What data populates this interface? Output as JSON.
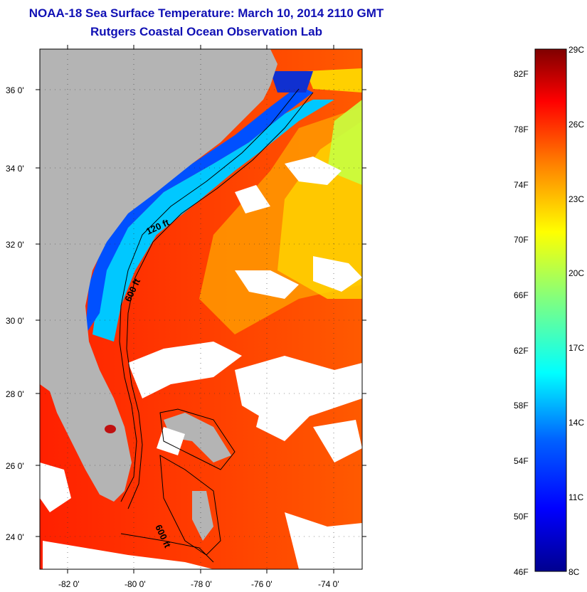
{
  "title": {
    "line1": "NOAA-18 Sea Surface Temperature:  March 10, 2014 2110 GMT",
    "line2": "Rutgers Coastal Ocean Observation Lab"
  },
  "map": {
    "lat_labels": [
      "36 0'",
      "34 0'",
      "32 0'",
      "30 0'",
      "28 0'",
      "26 0'",
      "24 0'"
    ],
    "lon_labels": [
      "-82 0'",
      "-80 0'",
      "-78 0'",
      "-76 0'",
      "-74 0'"
    ],
    "contour_labels": [
      "120 ft",
      "600 ft",
      "600 ft"
    ],
    "land_color": "#b4b4b4",
    "cloud_color": "#ffffff"
  },
  "colorbar": {
    "fahrenheit_labels": [
      "82F",
      "78F",
      "74F",
      "70F",
      "66F",
      "62F",
      "58F",
      "54F",
      "50F",
      "46F"
    ],
    "celsius_labels": [
      "29C",
      "26C",
      "23C",
      "20C",
      "17C",
      "14C",
      "11C",
      "8C"
    ],
    "colors": [
      "#7f0000",
      "#ff0000",
      "#ff8000",
      "#ffff00",
      "#80ff80",
      "#00ffff",
      "#0080ff",
      "#0000ff",
      "#00008f"
    ]
  }
}
